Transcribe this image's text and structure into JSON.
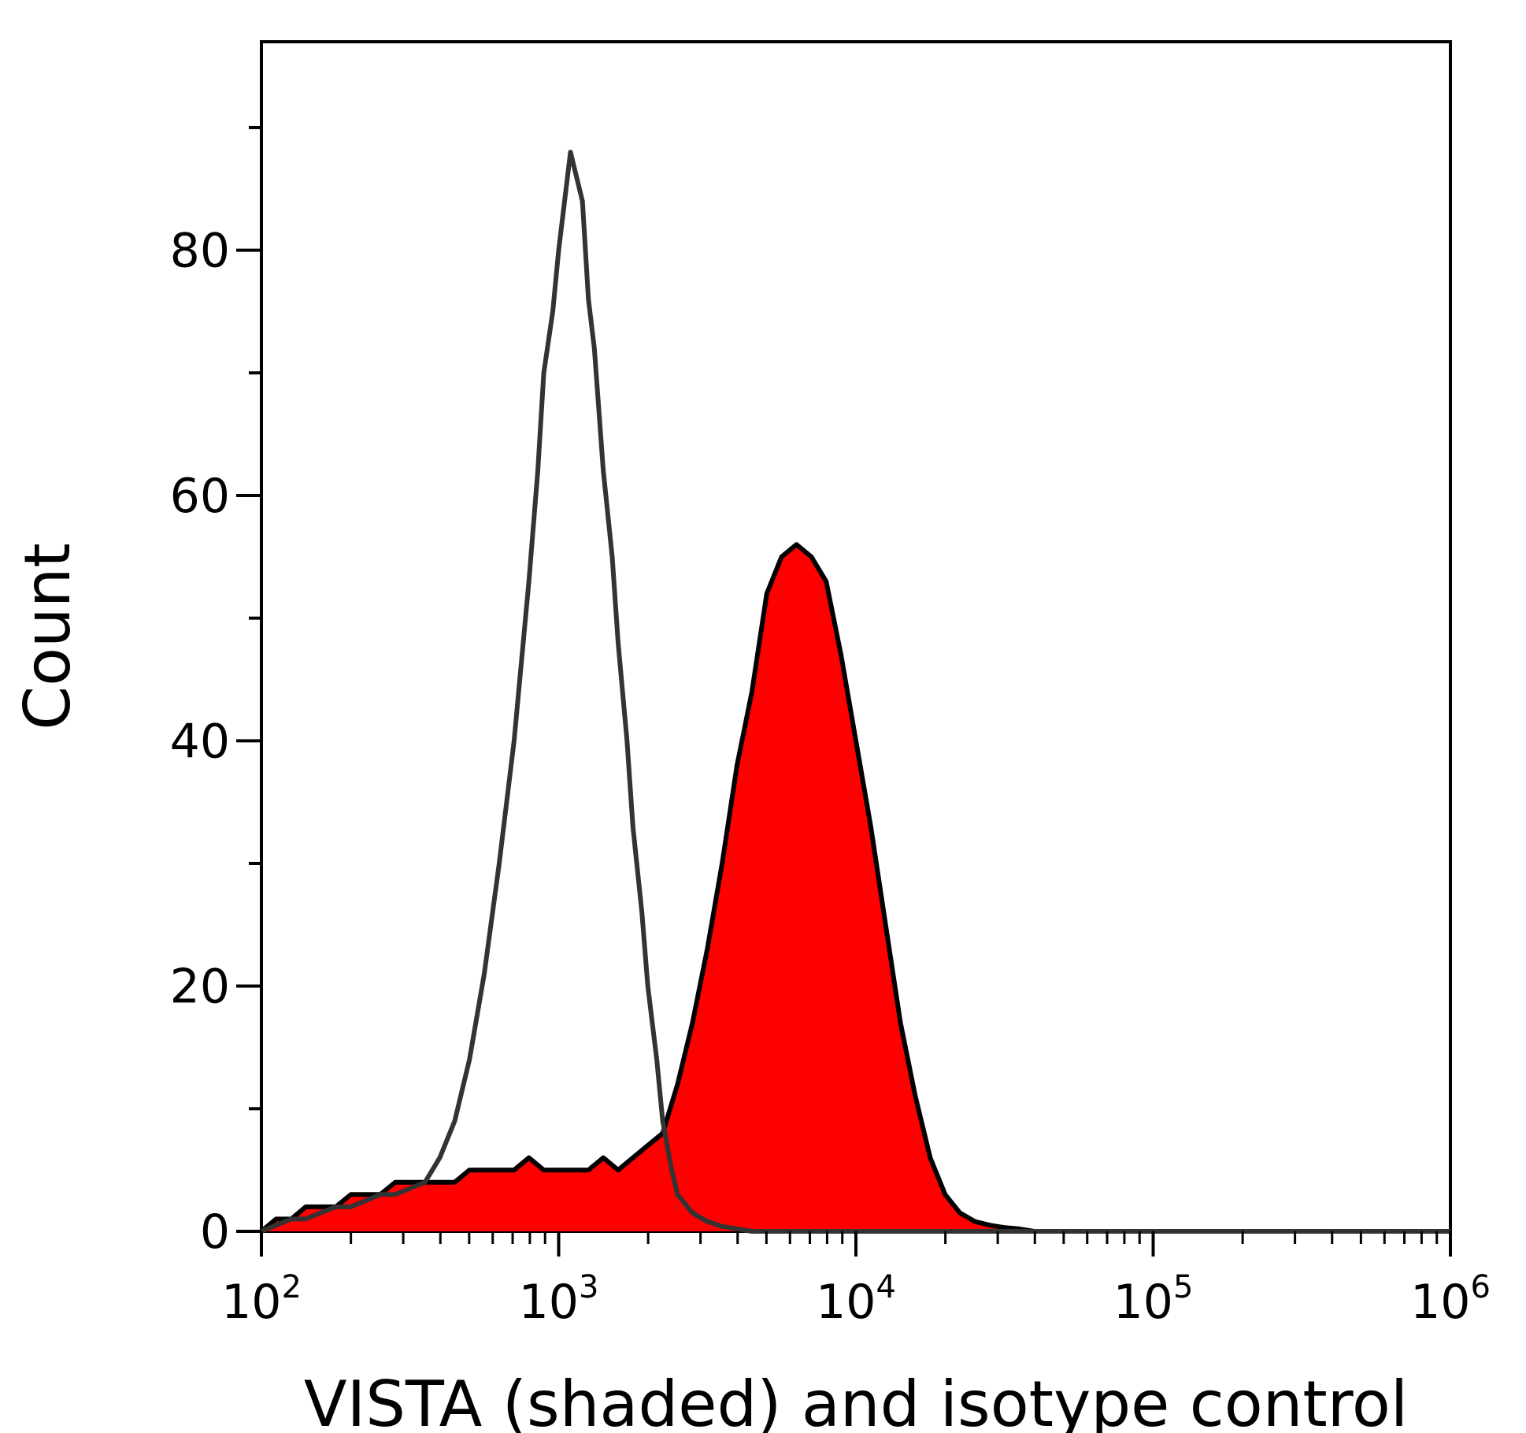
{
  "chart_data": {
    "type": "area",
    "title": "",
    "xlabel": "VISTA (shaded) and isotype control",
    "ylabel": "Count",
    "x_scale": "log",
    "xlim": [
      100,
      1000000
    ],
    "ylim": [
      0,
      97
    ],
    "grid": false,
    "legend": "none",
    "y_ticks": [
      {
        "value": 0,
        "label": "0"
      },
      {
        "value": 20,
        "label": "20"
      },
      {
        "value": 40,
        "label": "40"
      },
      {
        "value": 60,
        "label": "60"
      },
      {
        "value": 80,
        "label": "80"
      }
    ],
    "x_ticks": [
      {
        "value": 100,
        "base": "10",
        "exp": "2"
      },
      {
        "value": 1000,
        "base": "10",
        "exp": "3"
      },
      {
        "value": 10000,
        "base": "10",
        "exp": "4"
      },
      {
        "value": 100000,
        "base": "10",
        "exp": "5"
      },
      {
        "value": 1000000,
        "base": "10",
        "exp": "6"
      }
    ],
    "series": [
      {
        "style": "filled",
        "fill_color": "#ff0000",
        "line_color": "#000000",
        "x": [
          100,
          112,
          126,
          141,
          158,
          178,
          200,
          224,
          251,
          282,
          316,
          355,
          398,
          447,
          501,
          562,
          631,
          708,
          794,
          891,
          1000,
          1122,
          1259,
          1413,
          1585,
          1778,
          1995,
          2239,
          2512,
          2818,
          3162,
          3548,
          3981,
          4467,
          5012,
          5623,
          6310,
          7079,
          7943,
          8913,
          10000,
          11220,
          12589,
          14125,
          15849,
          17783,
          19953,
          22387,
          25119,
          28184,
          31623,
          35481,
          39811,
          50119,
          63096,
          79433,
          100000,
          1000000
        ],
        "y": [
          0,
          1,
          1,
          2,
          2,
          2,
          3,
          3,
          3,
          4,
          4,
          4,
          4,
          4,
          5,
          5,
          5,
          5,
          6,
          5,
          5,
          5,
          5,
          6,
          5,
          6,
          7,
          8,
          12,
          17,
          23,
          30,
          38,
          44,
          52,
          55,
          56,
          55,
          53,
          47,
          40,
          33,
          25,
          17,
          11,
          6,
          3,
          1.5,
          0.8,
          0.5,
          0.3,
          0.2,
          0,
          0,
          0,
          0,
          0,
          0
        ]
      },
      {
        "style": "line",
        "line_color": "#333333",
        "x": [
          100,
          112,
          126,
          141,
          158,
          178,
          200,
          224,
          251,
          282,
          316,
          355,
          398,
          447,
          501,
          562,
          631,
          708,
          794,
          851,
          891,
          955,
          1000,
          1047,
          1096,
          1148,
          1202,
          1259,
          1318,
          1413,
          1514,
          1585,
          1698,
          1778,
          1905,
          1995,
          2138,
          2239,
          2399,
          2512,
          2818,
          3162,
          3548,
          3981,
          4467,
          5012,
          5623,
          6310,
          7079,
          7943,
          8913,
          10000,
          11220,
          12589,
          14125,
          15849,
          17783,
          19953,
          22387,
          25119,
          28184,
          31623,
          35481,
          39811,
          50119,
          63096,
          79433,
          100000,
          1000000
        ],
        "y": [
          0,
          0.5,
          1,
          1,
          1.5,
          2,
          2,
          2.5,
          3,
          3,
          3.5,
          4,
          6,
          9,
          14,
          21,
          30,
          40,
          53,
          62,
          70,
          75,
          80,
          84,
          88,
          86,
          84,
          76,
          72,
          62,
          55,
          48,
          40,
          33,
          26,
          20,
          14,
          9,
          5,
          3,
          1.5,
          0.8,
          0.4,
          0.2,
          0,
          0,
          0,
          0,
          0,
          0,
          0,
          0,
          0,
          0,
          0,
          0,
          0,
          0,
          0,
          0,
          0,
          0,
          0,
          0,
          0,
          0,
          0,
          0,
          0
        ]
      }
    ]
  }
}
